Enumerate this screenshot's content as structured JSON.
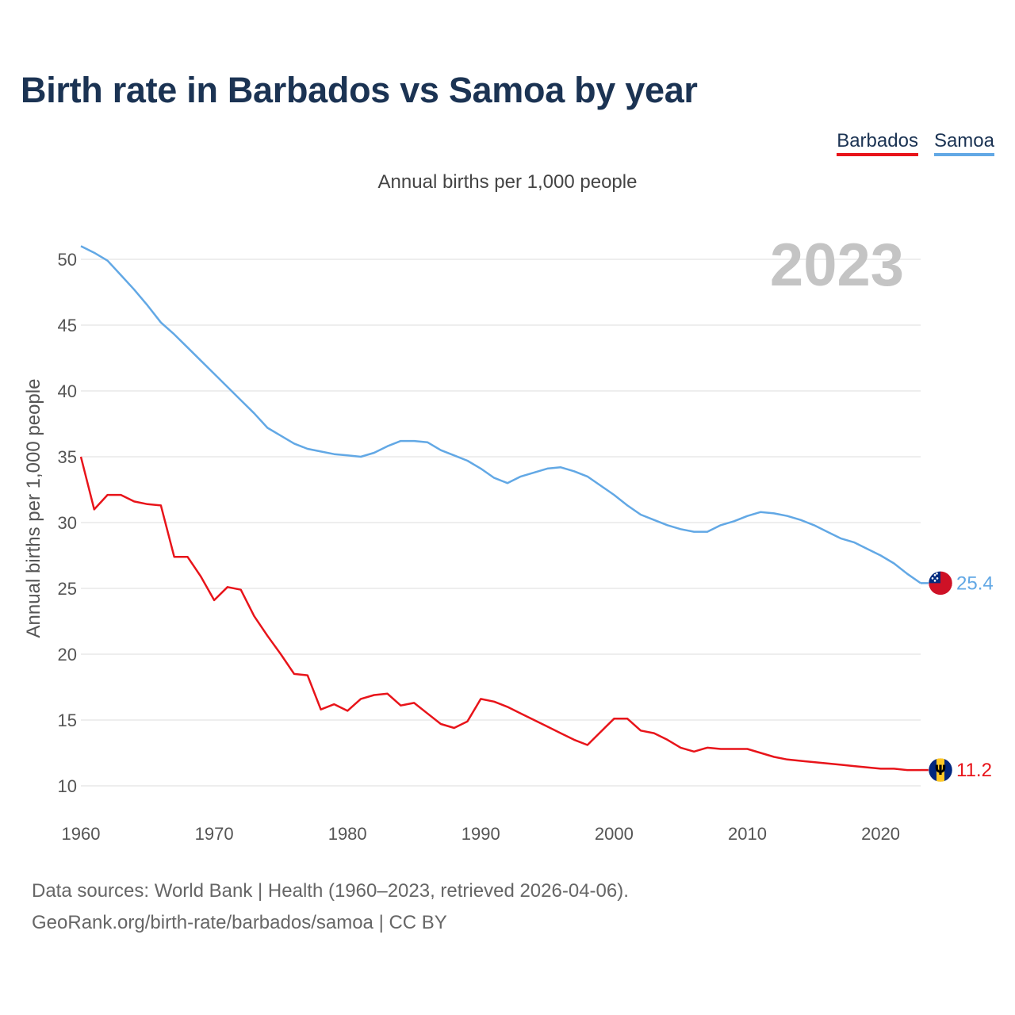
{
  "title": "Birth rate in Barbados vs Samoa by year",
  "subtitle": "Annual births per 1,000 people",
  "legend": [
    {
      "name": "Barbados",
      "color": "#e8141a"
    },
    {
      "name": "Samoa",
      "color": "#62a8e5"
    }
  ],
  "year_label": "2023",
  "footer": {
    "line1": "Data sources: World Bank | Health (1960–2023, retrieved 2026-04-06).",
    "line2": "GeoRank.org/birth-rate/barbados/samoa | CC BY"
  },
  "chart_data": {
    "type": "line",
    "title": "Birth rate in Barbados vs Samoa by year",
    "xlabel": "",
    "ylabel": "Annual births per 1,000 people",
    "xlim": [
      1960,
      2023
    ],
    "ylim": [
      10,
      52
    ],
    "x_ticks": [
      1960,
      1970,
      1980,
      1990,
      2000,
      2010,
      2020
    ],
    "y_ticks": [
      10,
      15,
      20,
      25,
      30,
      35,
      40,
      45,
      50
    ],
    "grid": true,
    "legend_position": "top-right",
    "x": [
      1960,
      1961,
      1962,
      1963,
      1964,
      1965,
      1966,
      1967,
      1968,
      1969,
      1970,
      1971,
      1972,
      1973,
      1974,
      1975,
      1976,
      1977,
      1978,
      1979,
      1980,
      1981,
      1982,
      1983,
      1984,
      1985,
      1986,
      1987,
      1988,
      1989,
      1990,
      1991,
      1992,
      1993,
      1994,
      1995,
      1996,
      1997,
      1998,
      1999,
      2000,
      2001,
      2002,
      2003,
      2004,
      2005,
      2006,
      2007,
      2008,
      2009,
      2010,
      2011,
      2012,
      2013,
      2014,
      2015,
      2016,
      2017,
      2018,
      2019,
      2020,
      2021,
      2022,
      2023
    ],
    "series": [
      {
        "name": "Samoa",
        "color": "#62a8e5",
        "end_label": "25.4",
        "values": [
          51.0,
          50.5,
          49.9,
          48.8,
          47.7,
          46.5,
          45.2,
          44.3,
          43.3,
          42.3,
          41.3,
          40.3,
          39.3,
          38.3,
          37.2,
          36.6,
          36.0,
          35.6,
          35.4,
          35.2,
          35.1,
          35.0,
          35.3,
          35.8,
          36.2,
          36.2,
          36.1,
          35.5,
          35.1,
          34.7,
          34.1,
          33.4,
          33.0,
          33.5,
          33.8,
          34.1,
          34.2,
          33.9,
          33.5,
          32.8,
          32.1,
          31.3,
          30.6,
          30.2,
          29.8,
          29.5,
          29.3,
          29.3,
          29.8,
          30.1,
          30.5,
          30.8,
          30.7,
          30.5,
          30.2,
          29.8,
          29.3,
          28.8,
          28.5,
          28.0,
          27.5,
          26.9,
          26.1,
          25.4
        ]
      },
      {
        "name": "Barbados",
        "color": "#e8141a",
        "end_label": "11.2",
        "values": [
          35.0,
          31.0,
          32.1,
          32.1,
          31.6,
          31.4,
          31.3,
          27.4,
          27.4,
          25.9,
          24.1,
          25.1,
          24.9,
          22.9,
          21.4,
          20.0,
          18.5,
          18.4,
          15.8,
          16.2,
          15.7,
          16.6,
          16.9,
          17.0,
          16.1,
          16.3,
          15.5,
          14.7,
          14.4,
          14.9,
          16.6,
          16.4,
          16.0,
          15.5,
          15.0,
          14.5,
          14.0,
          13.5,
          13.1,
          14.1,
          15.1,
          15.1,
          14.2,
          14.0,
          13.5,
          12.9,
          12.6,
          12.9,
          12.8,
          12.8,
          12.8,
          12.5,
          12.2,
          12.0,
          11.9,
          11.8,
          11.7,
          11.6,
          11.5,
          11.4,
          11.3,
          11.3,
          11.2,
          11.2
        ]
      }
    ]
  }
}
